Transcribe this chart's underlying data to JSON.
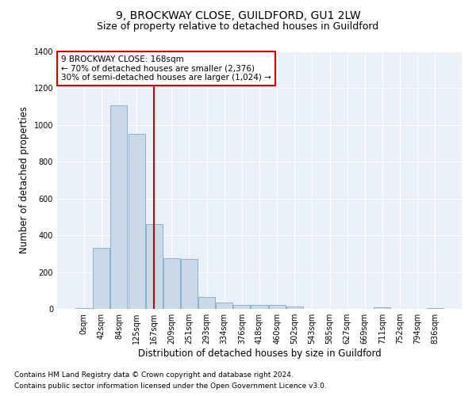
{
  "title": "9, BROCKWAY CLOSE, GUILDFORD, GU1 2LW",
  "subtitle": "Size of property relative to detached houses in Guildford",
  "xlabel": "Distribution of detached houses by size in Guildford",
  "ylabel": "Number of detached properties",
  "categories": [
    "0sqm",
    "42sqm",
    "84sqm",
    "125sqm",
    "167sqm",
    "209sqm",
    "251sqm",
    "293sqm",
    "334sqm",
    "376sqm",
    "418sqm",
    "460sqm",
    "502sqm",
    "543sqm",
    "585sqm",
    "627sqm",
    "669sqm",
    "711sqm",
    "752sqm",
    "794sqm",
    "836sqm"
  ],
  "bar_heights": [
    5,
    330,
    1105,
    950,
    460,
    275,
    270,
    65,
    35,
    20,
    20,
    20,
    12,
    0,
    0,
    0,
    0,
    10,
    0,
    0,
    5
  ],
  "bar_color": "#c9d9e8",
  "bar_edge_color": "#6a9fc0",
  "red_line_index": 4,
  "red_line_color": "#cc0000",
  "annotation_line1": "9 BROCKWAY CLOSE: 168sqm",
  "annotation_line2": "← 70% of detached houses are smaller (2,376)",
  "annotation_line3": "30% of semi-detached houses are larger (1,024) →",
  "annotation_box_color": "#ffffff",
  "annotation_box_edge": "#cc0000",
  "ylim": [
    0,
    1400
  ],
  "yticks": [
    0,
    200,
    400,
    600,
    800,
    1000,
    1200,
    1400
  ],
  "plot_background": "#eaf0f8",
  "footnote1": "Contains HM Land Registry data © Crown copyright and database right 2024.",
  "footnote2": "Contains public sector information licensed under the Open Government Licence v3.0.",
  "title_fontsize": 10,
  "subtitle_fontsize": 9,
  "axis_label_fontsize": 8.5,
  "tick_fontsize": 7,
  "annotation_fontsize": 7.5,
  "footnote_fontsize": 6.5
}
